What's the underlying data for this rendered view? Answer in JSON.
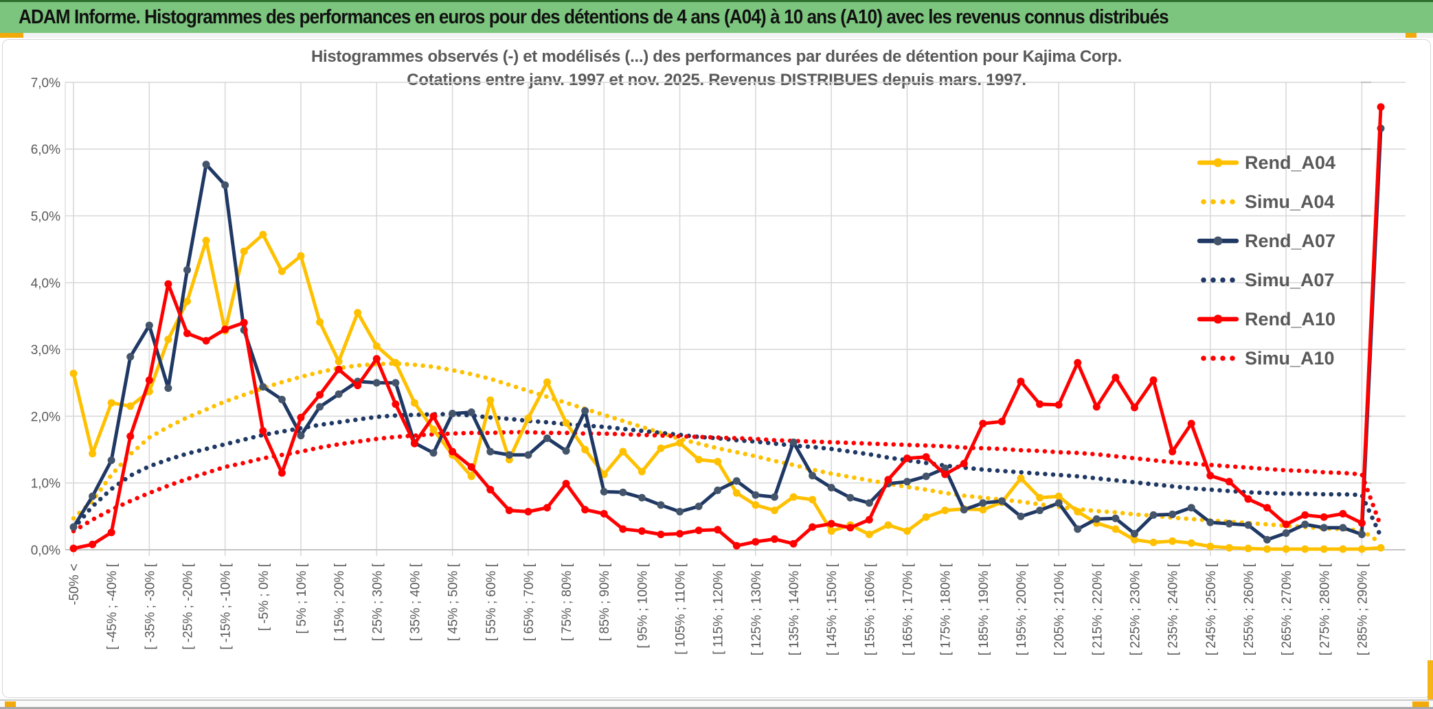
{
  "window": {
    "title": "ADAM Informe. Histogrammes des performances en euros pour des détentions de 4 ans (A04) à 10 ans (A10) avec les revenus connus distribués"
  },
  "chart": {
    "title_line1": "Histogrammes observés (-) et modélisés (...) des performances par durées de détention pour Kajima Corp.",
    "title_line2": "Cotations entre janv. 1997 et nov. 2025. Revenus DISTRIBUES depuis mars. 1997.",
    "y_axis_labels": [
      "0,0%",
      "1,0%",
      "2,0%",
      "3,0%",
      "4,0%",
      "5,0%",
      "6,0%",
      "7,0%"
    ],
    "legend_labels": [
      "Rend_A04",
      "Simu_A04",
      "Rend_A07",
      "Simu_A07",
      "Rend_A10",
      "Simu_A10"
    ]
  },
  "colors": {
    "gold": "#FFC000",
    "navy": "#1F3864",
    "navy_marker": "#44546A",
    "red": "#FF0000",
    "grid": "#D9D9D9",
    "axis": "#BFBFBF",
    "label_gray": "#595959",
    "header_green": "#7CC57E",
    "accent_orange": "#F2A90A"
  },
  "chart_data": {
    "type": "line",
    "title": "Histogrammes observés (-) et modélisés (...) des performances par durées de détention pour Kajima Corp.",
    "subtitle": "Cotations entre janv. 1997 et nov. 2025. Revenus DISTRIBUES depuis mars. 1997.",
    "ylabel": "",
    "xlabel": "",
    "ylim": [
      0,
      7
    ],
    "y_tick_step": 1,
    "grid": true,
    "legend_position": "right",
    "bin_count": 70,
    "label_every_n_bins": 2,
    "categories_visible": [
      "-50% <",
      "[ -45% ; -40% [",
      "[ -35% ; -30% [",
      "[ -25% ; -20% [",
      "[ -15% ; -10% [",
      "[ -5% ; 0% [",
      "[ 5% ; 10% [",
      "[ 15% ; 20% [",
      "[ 25% ; 30% [",
      "[ 35% ; 40% [",
      "[ 45% ; 50% [",
      "[ 55% ; 60% [",
      "[ 65% ; 70% [",
      "[ 75% ; 80% [",
      "[ 85% ; 90% [",
      "[ 95% ; 100% [",
      "[ 105% ; 110% [",
      "[ 115% ; 120% [",
      "[ 125% ; 130% [",
      "[ 135% ; 140% [",
      "[ 145% ; 150% [",
      "[ 155% ; 160% [",
      "[ 165% ; 170% [",
      "[ 175% ; 180% [",
      "[ 185% ; 190% [",
      "[ 195% ; 200% [",
      "[ 205% ; 210% [",
      "[ 215% ; 220% [",
      "[ 225% ; 230% [",
      "[ 235% ; 240% [",
      "[ 245% ; 250% [",
      "[ 255% ; 260% [",
      "[ 265% ; 270% [",
      "[ 275% ; 280% [",
      "[ 285% ; 290% ["
    ],
    "series": [
      {
        "name": "Rend_A04",
        "style": "solid",
        "color": "#FFC000",
        "marker_color": "#FFC000",
        "values": [
          2.64,
          1.44,
          2.2,
          2.15,
          2.37,
          3.15,
          3.72,
          4.63,
          3.28,
          4.47,
          4.72,
          4.17,
          4.4,
          3.41,
          2.82,
          3.55,
          3.05,
          2.8,
          2.2,
          1.8,
          1.42,
          1.1,
          2.24,
          1.35,
          1.97,
          2.51,
          1.9,
          1.5,
          1.13,
          1.47,
          1.17,
          1.52,
          1.6,
          1.35,
          1.32,
          0.85,
          0.67,
          0.59,
          0.79,
          0.75,
          0.28,
          0.37,
          0.23,
          0.37,
          0.28,
          0.49,
          0.59,
          0.61,
          0.6,
          0.71,
          1.07,
          0.78,
          0.8,
          0.57,
          0.4,
          0.31,
          0.15,
          0.11,
          0.13,
          0.1,
          0.05,
          0.03,
          0.02,
          0.01,
          0.01,
          0.01,
          0.01,
          0.01,
          0.01,
          0.03
        ]
      },
      {
        "name": "Simu_A04",
        "style": "dotted",
        "color": "#FFC000",
        "values": [
          0.47,
          0.73,
          1.12,
          1.43,
          1.68,
          1.84,
          1.98,
          2.1,
          2.22,
          2.32,
          2.42,
          2.51,
          2.59,
          2.66,
          2.72,
          2.76,
          2.78,
          2.79,
          2.77,
          2.74,
          2.69,
          2.63,
          2.56,
          2.47,
          2.38,
          2.29,
          2.2,
          2.11,
          2.02,
          1.93,
          1.84,
          1.75,
          1.66,
          1.59,
          1.52,
          1.46,
          1.4,
          1.33,
          1.27,
          1.2,
          1.14,
          1.09,
          1.04,
          0.99,
          0.94,
          0.9,
          0.85,
          0.81,
          0.78,
          0.75,
          0.72,
          0.68,
          0.64,
          0.61,
          0.58,
          0.56,
          0.53,
          0.51,
          0.48,
          0.46,
          0.44,
          0.42,
          0.4,
          0.38,
          0.36,
          0.34,
          0.32,
          0.31,
          0.29,
          0.1
        ]
      },
      {
        "name": "Rend_A07",
        "style": "solid",
        "color": "#1F3864",
        "marker_color": "#44546A",
        "values": [
          0.34,
          0.8,
          1.34,
          2.89,
          3.36,
          2.42,
          4.19,
          5.77,
          5.46,
          3.29,
          2.44,
          2.25,
          1.71,
          2.14,
          2.33,
          2.52,
          2.5,
          2.5,
          1.6,
          1.45,
          2.04,
          2.06,
          1.47,
          1.42,
          1.42,
          1.67,
          1.48,
          2.08,
          0.87,
          0.86,
          0.78,
          0.67,
          0.57,
          0.65,
          0.89,
          1.03,
          0.82,
          0.79,
          1.61,
          1.11,
          0.93,
          0.78,
          0.7,
          0.99,
          1.02,
          1.1,
          1.22,
          0.6,
          0.7,
          0.73,
          0.5,
          0.59,
          0.7,
          0.31,
          0.46,
          0.47,
          0.24,
          0.52,
          0.53,
          0.63,
          0.41,
          0.39,
          0.37,
          0.15,
          0.25,
          0.38,
          0.33,
          0.33,
          0.23,
          6.31
        ]
      },
      {
        "name": "Simu_A07",
        "style": "dotted",
        "color": "#1F3864",
        "values": [
          0.32,
          0.65,
          0.91,
          1.11,
          1.25,
          1.35,
          1.44,
          1.51,
          1.58,
          1.65,
          1.72,
          1.77,
          1.82,
          1.87,
          1.91,
          1.95,
          1.99,
          2.01,
          2.02,
          2.03,
          2.03,
          2.01,
          1.98,
          1.96,
          1.93,
          1.91,
          1.88,
          1.86,
          1.84,
          1.81,
          1.78,
          1.75,
          1.72,
          1.69,
          1.67,
          1.64,
          1.62,
          1.59,
          1.56,
          1.54,
          1.51,
          1.47,
          1.43,
          1.38,
          1.34,
          1.3,
          1.26,
          1.23,
          1.2,
          1.18,
          1.16,
          1.14,
          1.12,
          1.1,
          1.07,
          1.04,
          1.01,
          0.98,
          0.95,
          0.92,
          0.9,
          0.88,
          0.86,
          0.85,
          0.84,
          0.84,
          0.83,
          0.83,
          0.82,
          0.2
        ]
      },
      {
        "name": "Rend_A10",
        "style": "solid",
        "color": "#FF0000",
        "marker_color": "#FF0000",
        "values": [
          0.02,
          0.08,
          0.26,
          1.7,
          2.54,
          3.98,
          3.24,
          3.13,
          3.3,
          3.4,
          1.78,
          1.15,
          1.98,
          2.32,
          2.7,
          2.46,
          2.86,
          2.18,
          1.59,
          2.0,
          1.47,
          1.24,
          0.9,
          0.59,
          0.57,
          0.63,
          0.99,
          0.6,
          0.54,
          0.31,
          0.28,
          0.23,
          0.24,
          0.29,
          0.3,
          0.06,
          0.12,
          0.16,
          0.09,
          0.34,
          0.39,
          0.33,
          0.45,
          1.05,
          1.37,
          1.39,
          1.13,
          1.29,
          1.89,
          1.92,
          2.52,
          2.18,
          2.17,
          2.8,
          2.14,
          2.58,
          2.13,
          2.54,
          1.47,
          1.89,
          1.11,
          1.02,
          0.76,
          0.63,
          0.38,
          0.52,
          0.49,
          0.54,
          0.4,
          6.63
        ]
      },
      {
        "name": "Simu_A10",
        "style": "dotted",
        "color": "#FF0000",
        "values": [
          0.28,
          0.45,
          0.6,
          0.73,
          0.85,
          0.96,
          1.06,
          1.15,
          1.24,
          1.3,
          1.37,
          1.42,
          1.47,
          1.53,
          1.58,
          1.62,
          1.66,
          1.69,
          1.71,
          1.73,
          1.74,
          1.75,
          1.75,
          1.76,
          1.76,
          1.75,
          1.75,
          1.74,
          1.74,
          1.73,
          1.72,
          1.71,
          1.7,
          1.69,
          1.68,
          1.67,
          1.66,
          1.64,
          1.63,
          1.62,
          1.61,
          1.6,
          1.59,
          1.58,
          1.57,
          1.56,
          1.55,
          1.53,
          1.52,
          1.51,
          1.49,
          1.48,
          1.46,
          1.45,
          1.43,
          1.4,
          1.37,
          1.34,
          1.31,
          1.29,
          1.27,
          1.25,
          1.23,
          1.21,
          1.19,
          1.18,
          1.16,
          1.15,
          1.13,
          0.35
        ]
      }
    ]
  }
}
